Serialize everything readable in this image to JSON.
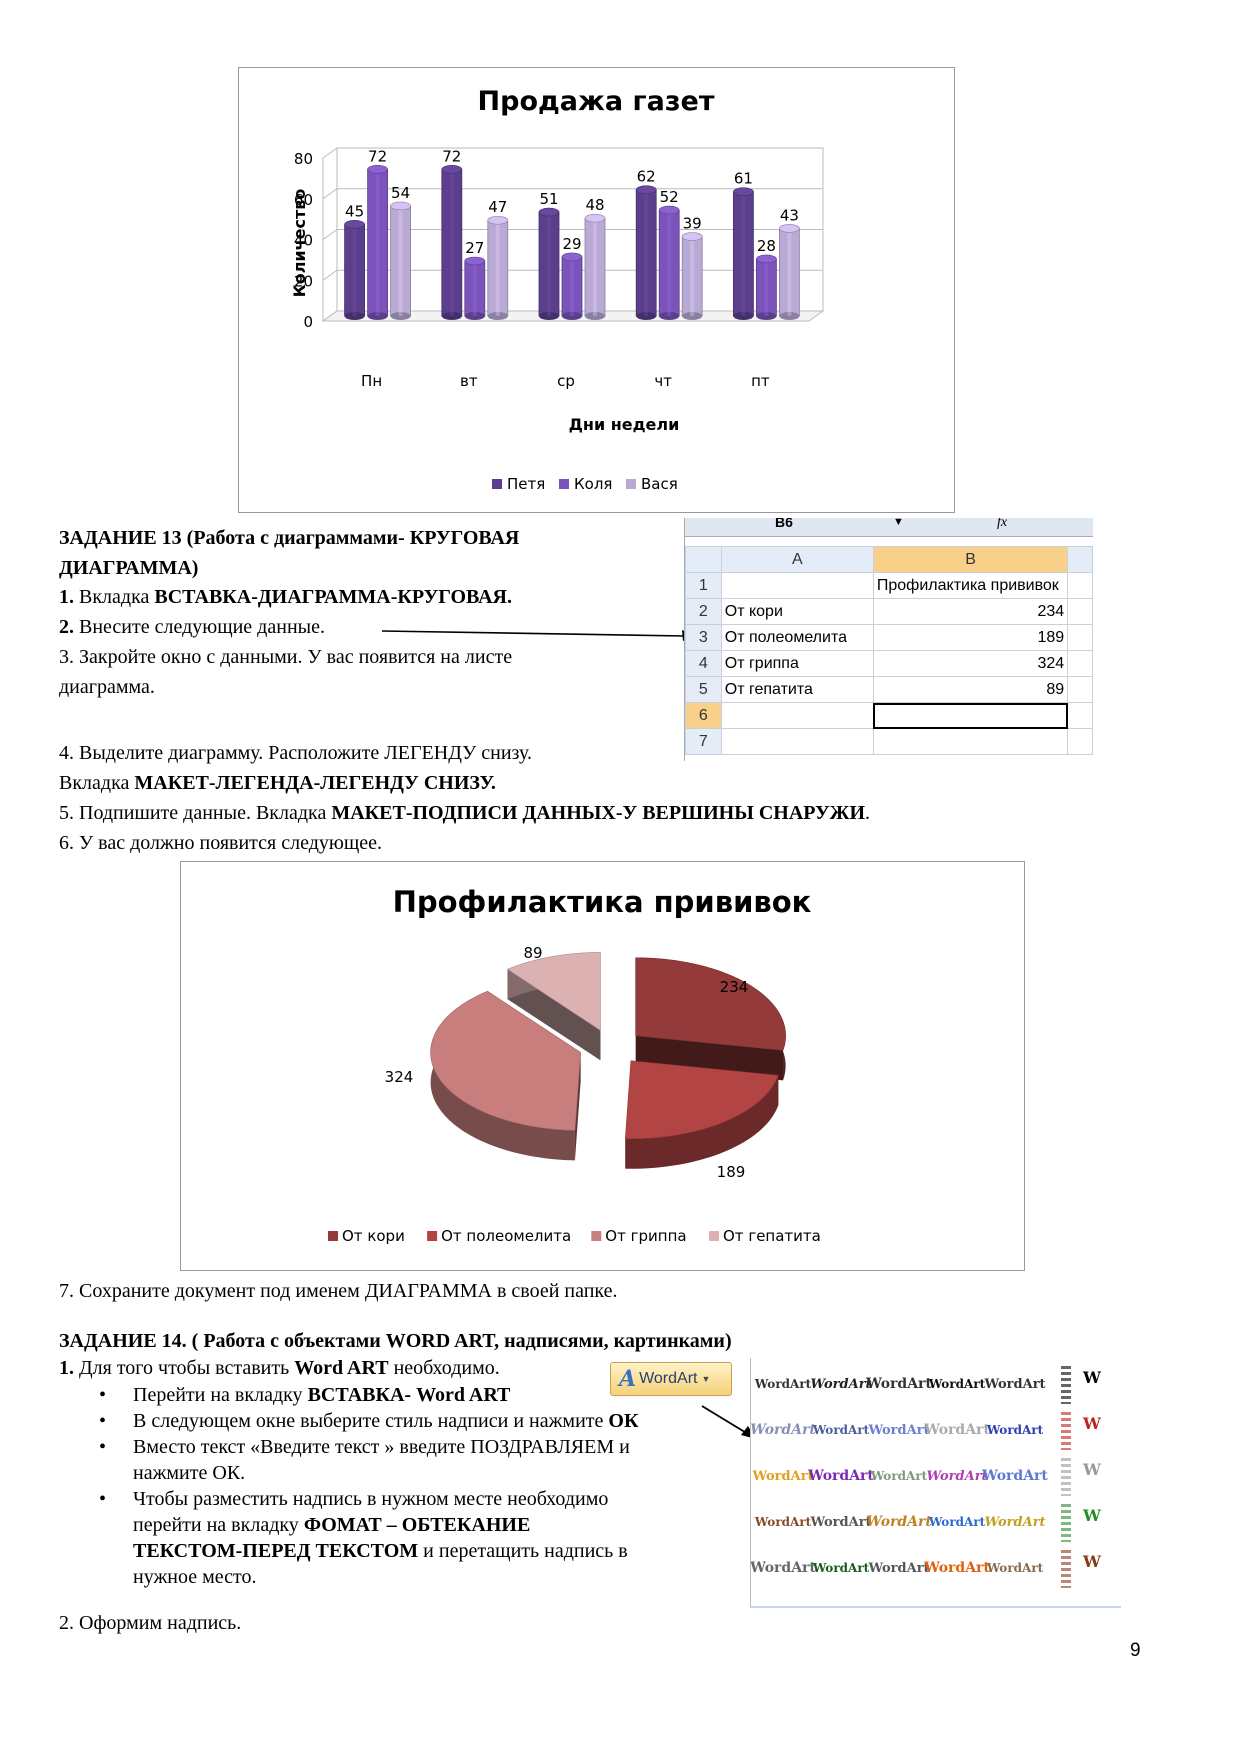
{
  "chart1": {
    "chart_data": {
      "type": "bar",
      "title": "Продажа газет",
      "xlabel": "Дни недели",
      "ylabel": "Количество",
      "categories": [
        "Пн",
        "вт",
        "ср",
        "чт",
        "пт"
      ],
      "yticks": [
        "0",
        "20",
        "40",
        "60",
        "80"
      ],
      "ylim": [
        0,
        80
      ],
      "legend_position": "bottom",
      "series": [
        {
          "name": "Петя",
          "color": "#5b3f8c",
          "values": [
            45,
            72,
            51,
            62,
            61
          ]
        },
        {
          "name": "Коля",
          "color": "#7a54b8",
          "values": [
            72,
            27,
            29,
            52,
            28
          ]
        },
        {
          "name": "Вася",
          "color": "#b8aad4",
          "values": [
            54,
            47,
            48,
            39,
            43
          ]
        }
      ]
    }
  },
  "task13": {
    "heading1": "ЗАДАНИЕ 13 (Работа с диаграммами- КРУГОВАЯ",
    "heading2": "ДИАГРАММА)",
    "s1_num": "1.",
    "s1_text": " Вкладка ",
    "s1_bold": "ВСТАВКА-ДИАГРАММА-КРУГОВАЯ.",
    "s2_num": "2.",
    "s2_text": " Внесите следующие данные.",
    "s3a": "3. Закройте окно с данными. У вас появится на листе",
    "s3b": "диаграмма.",
    "s4a": "4. Выделите диаграмму. Расположите ЛЕГЕНДУ снизу.",
    "s4b_text": "Вкладка ",
    "s4b_bold": "МАКЕТ-ЛЕГЕНДА-ЛЕГЕНДУ СНИЗУ.",
    "s5_text": "5. Подпишите данные. Вкладка ",
    "s5_bold": "МАКЕТ-ПОДПИСИ ДАННЫХ-У ВЕРШИНЫ СНАРУЖИ",
    "s5_end": ".",
    "s6": "6. У вас должно появится следующее.",
    "s7": "7. Сохраните документ под именем ДИАГРАММА в своей папке."
  },
  "excel": {
    "namebox": "B6",
    "fx": "fx",
    "col_a": "A",
    "col_b": "B",
    "rows": [
      {
        "n": "1",
        "a": "",
        "b": "Профилактика прививок"
      },
      {
        "n": "2",
        "a": "От кори",
        "b": "234"
      },
      {
        "n": "3",
        "a": "От полеомелита",
        "b": "189"
      },
      {
        "n": "4",
        "a": "От гриппа",
        "b": "324"
      },
      {
        "n": "5",
        "a": "От гепатита",
        "b": "89"
      },
      {
        "n": "6",
        "a": "",
        "b": ""
      },
      {
        "n": "7",
        "a": "",
        "b": ""
      }
    ]
  },
  "chart2": {
    "chart_data": {
      "type": "pie",
      "title": "Профилактика прививок",
      "legend_position": "bottom",
      "categories": [
        "От кори",
        "От полеомелита",
        "От гриппа",
        "От гепатита"
      ],
      "values": [
        234,
        189,
        324,
        89
      ],
      "colors": [
        "#943a3a",
        "#b34444",
        "#c97e7e",
        "#dcb1b1"
      ]
    }
  },
  "task14": {
    "heading": "ЗАДАНИЕ 14. ( Работа с объектами WORD ART, надписями, картинками)",
    "s1_num": "1.",
    "s1_text": " Для того чтобы вставить ",
    "s1_bold": "Word ART",
    "s1_end": " необходимо.",
    "b1_text": "Перейти на вкладку ",
    "b1_bold": "ВСТАВКА- Word ART",
    "b2_text": "В следующем окне выберите стиль надписи  и нажмите ",
    "b2_bold": "ОК",
    "b3a": "Вместо текст «Введите текст » введите ПОЗДРАВЛЯЕМ и",
    "b3b": "нажмите ОК.",
    "b4a": "Чтобы разместить надпись в нужном месте необходимо",
    "b4b_text": "перейти на вкладку ",
    "b4b_bold": "ФОМАТ – ОБТЕКАНИЕ",
    "b4c_bold": "ТЕКСТОМ-ПЕРЕД ТЕКСТОМ",
    "b4c_text": " и перетащить надпись в",
    "b4d": "нужное место.",
    "s2": "2. Оформим надпись.",
    "wordart_button": "WordArt",
    "gallery_label": "WordArt"
  },
  "page_number": "9"
}
